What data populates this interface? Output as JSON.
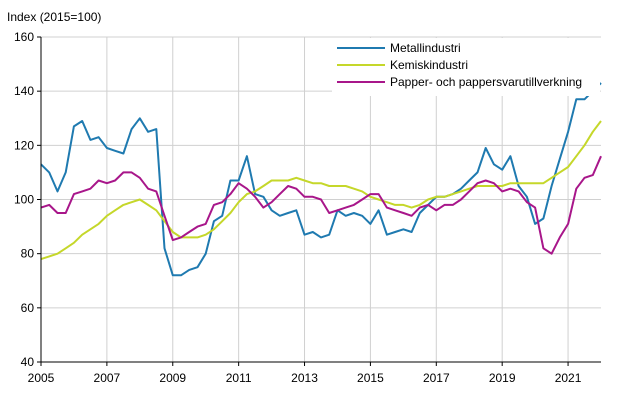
{
  "chart_data": {
    "type": "line",
    "title": "",
    "ylabel": "Index (2015=100)",
    "xlabel": "",
    "ylim": [
      40,
      160
    ],
    "xlim": [
      2005,
      2022
    ],
    "y_ticks": [
      40,
      60,
      80,
      100,
      120,
      140,
      160
    ],
    "x_ticks": [
      2005,
      2007,
      2009,
      2011,
      2013,
      2015,
      2017,
      2019,
      2021
    ],
    "grid": true,
    "legend_position": "top-right",
    "x": [
      2005.0,
      2005.25,
      2005.5,
      2005.75,
      2006.0,
      2006.25,
      2006.5,
      2006.75,
      2007.0,
      2007.25,
      2007.5,
      2007.75,
      2008.0,
      2008.25,
      2008.5,
      2008.75,
      2009.0,
      2009.25,
      2009.5,
      2009.75,
      2010.0,
      2010.25,
      2010.5,
      2010.75,
      2011.0,
      2011.25,
      2011.5,
      2011.75,
      2012.0,
      2012.25,
      2012.5,
      2012.75,
      2013.0,
      2013.25,
      2013.5,
      2013.75,
      2014.0,
      2014.25,
      2014.5,
      2014.75,
      2015.0,
      2015.25,
      2015.5,
      2015.75,
      2016.0,
      2016.25,
      2016.5,
      2016.75,
      2017.0,
      2017.25,
      2017.5,
      2017.75,
      2018.0,
      2018.25,
      2018.5,
      2018.75,
      2019.0,
      2019.25,
      2019.5,
      2019.75,
      2020.0,
      2020.25,
      2020.5,
      2020.75,
      2021.0,
      2021.25,
      2021.5,
      2021.75,
      2022.0
    ],
    "series": [
      {
        "name": "Metallindustri",
        "color": "#1f7ab0",
        "values": [
          113,
          110,
          103,
          110,
          127,
          129,
          122,
          123,
          119,
          118,
          117,
          126,
          130,
          125,
          126,
          82,
          72,
          72,
          74,
          75,
          80,
          92,
          94,
          107,
          107,
          116,
          102,
          101,
          96,
          94,
          95,
          96,
          87,
          88,
          86,
          87,
          96,
          94,
          95,
          94,
          91,
          96,
          87,
          88,
          89,
          88,
          95,
          98,
          101,
          101,
          102,
          104,
          107,
          110,
          119,
          113,
          111,
          116,
          105,
          101,
          91,
          93,
          105,
          115,
          125,
          137,
          137,
          140,
          143
        ]
      },
      {
        "name": "Kemiskindustri",
        "color": "#c5d72a",
        "values": [
          78,
          79,
          80,
          82,
          84,
          87,
          89,
          91,
          94,
          96,
          98,
          99,
          100,
          98,
          96,
          92,
          88,
          86,
          86,
          86,
          87,
          89,
          92,
          95,
          99,
          102,
          103,
          105,
          107,
          107,
          107,
          108,
          107,
          106,
          106,
          105,
          105,
          105,
          104,
          103,
          101,
          100,
          99,
          98,
          98,
          97,
          98,
          100,
          101,
          101,
          102,
          103,
          104,
          105,
          105,
          105,
          105,
          106,
          106,
          106,
          106,
          106,
          108,
          110,
          112,
          116,
          120,
          125,
          129
        ]
      },
      {
        "name": "Papper- och pappersvarutillverkning",
        "color": "#a8168a",
        "values": [
          97,
          98,
          95,
          95,
          102,
          103,
          104,
          107,
          106,
          107,
          110,
          110,
          108,
          104,
          103,
          94,
          85,
          86,
          88,
          90,
          91,
          98,
          99,
          102,
          106,
          104,
          101,
          97,
          99,
          102,
          105,
          104,
          101,
          101,
          100,
          95,
          96,
          97,
          98,
          100,
          102,
          102,
          97,
          96,
          95,
          94,
          97,
          98,
          96,
          98,
          98,
          100,
          103,
          106,
          107,
          106,
          103,
          104,
          103,
          99,
          97,
          82,
          80,
          86,
          91,
          104,
          108,
          109,
          116
        ]
      }
    ]
  },
  "legend": {
    "items": [
      {
        "label": "Metallindustri",
        "color": "#1f7ab0"
      },
      {
        "label": "Kemiskindustri",
        "color": "#c5d72a"
      },
      {
        "label": "Papper- och pappersvarutillverkning",
        "color": "#a8168a"
      }
    ]
  },
  "axes": {
    "y_unit_label": "Index (2015=100)"
  },
  "style": {
    "grid_color": "#d0d0d0",
    "axis_color": "#000000"
  }
}
